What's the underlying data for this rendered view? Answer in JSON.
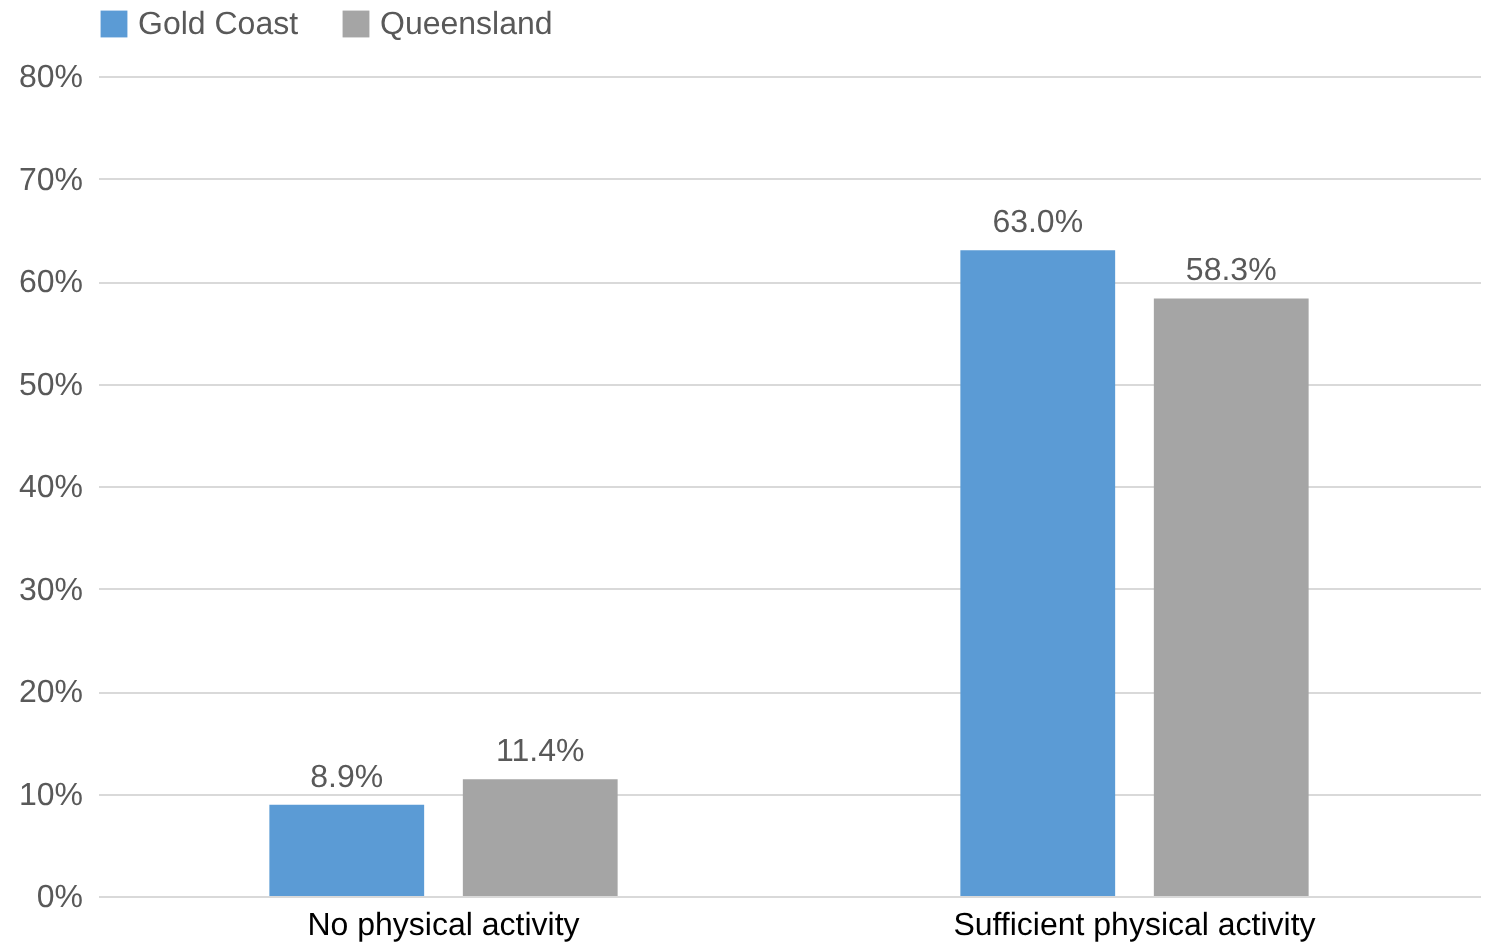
{
  "chart_data": {
    "type": "bar",
    "categories": [
      "No physical activity",
      "Sufficient physical activity"
    ],
    "series": [
      {
        "name": "Gold Coast",
        "color": "#5b9bd5",
        "values": [
          8.9,
          63.0
        ],
        "value_labels": [
          "8.9%",
          "63.0%"
        ]
      },
      {
        "name": "Queensland",
        "color": "#a5a5a5",
        "values": [
          11.4,
          58.3
        ],
        "value_labels": [
          "11.4%",
          "58.3%"
        ]
      }
    ],
    "ylim": [
      0,
      80
    ],
    "yticks": [
      {
        "value": 0,
        "label": "0%"
      },
      {
        "value": 10,
        "label": "10%"
      },
      {
        "value": 20,
        "label": "20%"
      },
      {
        "value": 30,
        "label": "30%"
      },
      {
        "value": 40,
        "label": "40%"
      },
      {
        "value": 50,
        "label": "50%"
      },
      {
        "value": 60,
        "label": "60%"
      },
      {
        "value": 70,
        "label": "70%"
      },
      {
        "value": 80,
        "label": "80%"
      }
    ],
    "grid": "y",
    "legend": "top"
  }
}
